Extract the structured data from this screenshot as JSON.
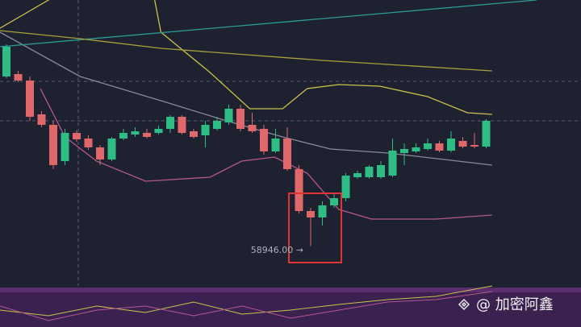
{
  "chart_data": {
    "type": "candlestick",
    "annotation": "58946.00 →",
    "watermark": "@ 加密阿鑫",
    "ylim": [
      58450,
      62000
    ],
    "up_color": "#2ebd85",
    "down_color": "#e0686b",
    "open": [
      61050,
      61080,
      61000,
      60580,
      60450,
      60000,
      60350,
      60280,
      60170,
      60020,
      60280,
      60330,
      60350,
      60350,
      60400,
      60550,
      60370,
      60320,
      60400,
      60480,
      60650,
      60450,
      60400,
      60120,
      60280,
      59900,
      59380,
      59300,
      59450,
      59540,
      59800,
      59800,
      59800,
      59820,
      60100,
      60120,
      60150,
      60220,
      60130,
      60250,
      60200,
      60180
    ],
    "high": [
      61450,
      61120,
      61050,
      60620,
      60500,
      60400,
      60380,
      60320,
      60200,
      60300,
      60400,
      60420,
      60400,
      60440,
      60570,
      60570,
      60400,
      60500,
      60550,
      60700,
      60700,
      60600,
      60450,
      60400,
      60420,
      59950,
      59420,
      59500,
      59600,
      59850,
      59880,
      59950,
      60000,
      60280,
      60220,
      60220,
      60280,
      60250,
      60370,
      60300,
      60350,
      60520
    ],
    "low": [
      61030,
      60980,
      60500,
      60420,
      59900,
      59950,
      60240,
      60140,
      59950,
      60000,
      60260,
      60300,
      60280,
      60330,
      60350,
      60330,
      60280,
      60170,
      60380,
      60450,
      60370,
      60350,
      60080,
      60100,
      59880,
      59350,
      58946,
      59200,
      59420,
      59500,
      59780,
      59780,
      59780,
      59800,
      59950,
      60100,
      60130,
      60110,
      60110,
      60160,
      60160,
      60160
    ],
    "close": [
      61420,
      61000,
      60550,
      60450,
      59950,
      60350,
      60270,
      60170,
      60020,
      60280,
      60350,
      60370,
      60300,
      60400,
      60550,
      60350,
      60300,
      60450,
      60500,
      60650,
      60400,
      60370,
      60120,
      60280,
      59900,
      59380,
      59300,
      59450,
      59540,
      59820,
      59850,
      59930,
      59950,
      60130,
      60150,
      60170,
      60220,
      60130,
      60280,
      60180,
      60180,
      60500
    ],
    "overlays": [
      {
        "color": "#c9c24a",
        "x": [
          -0.55,
          3.6,
          7.7,
          12.6,
          13.2,
          17.4,
          20.8,
          23.6,
          25.7,
          28.4,
          31.9,
          36,
          39.4,
          41.5
        ],
        "values": [
          61650,
          62000,
          62400,
          62050,
          61600,
          61100,
          60650,
          60650,
          60900,
          60950,
          60930,
          60800,
          60600,
          60580
        ]
      },
      {
        "color": "#8a8a96",
        "x": [
          -0.55,
          6.3,
          13.2,
          18.8,
          23.6,
          27.7,
          32.6,
          37.4,
          41.5
        ],
        "values": [
          61600,
          61050,
          60750,
          60500,
          60300,
          60150,
          60100,
          60020,
          59950
        ]
      },
      {
        "color": "#b5588f",
        "x": [
          2.9,
          5,
          7.7,
          11.9,
          17.4,
          20.1,
          22.9,
          25.7,
          28.4,
          31.2,
          36.7,
          41.5
        ],
        "values": [
          60900,
          60300,
          60000,
          59750,
          59800,
          60000,
          60050,
          59850,
          59400,
          59280,
          59280,
          59330
        ]
      },
      {
        "color": "#2a9d95",
        "x": [
          -0.55,
          45.3
        ],
        "values": [
          61420,
          62000
        ]
      },
      {
        "color": "#a8a03a",
        "x": [
          -0.55,
          6.3,
          13.2,
          27,
          41.5
        ],
        "values": [
          61620,
          61520,
          61400,
          61250,
          61120
        ]
      }
    ],
    "reference_lines": [
      60990,
      60500
    ]
  }
}
